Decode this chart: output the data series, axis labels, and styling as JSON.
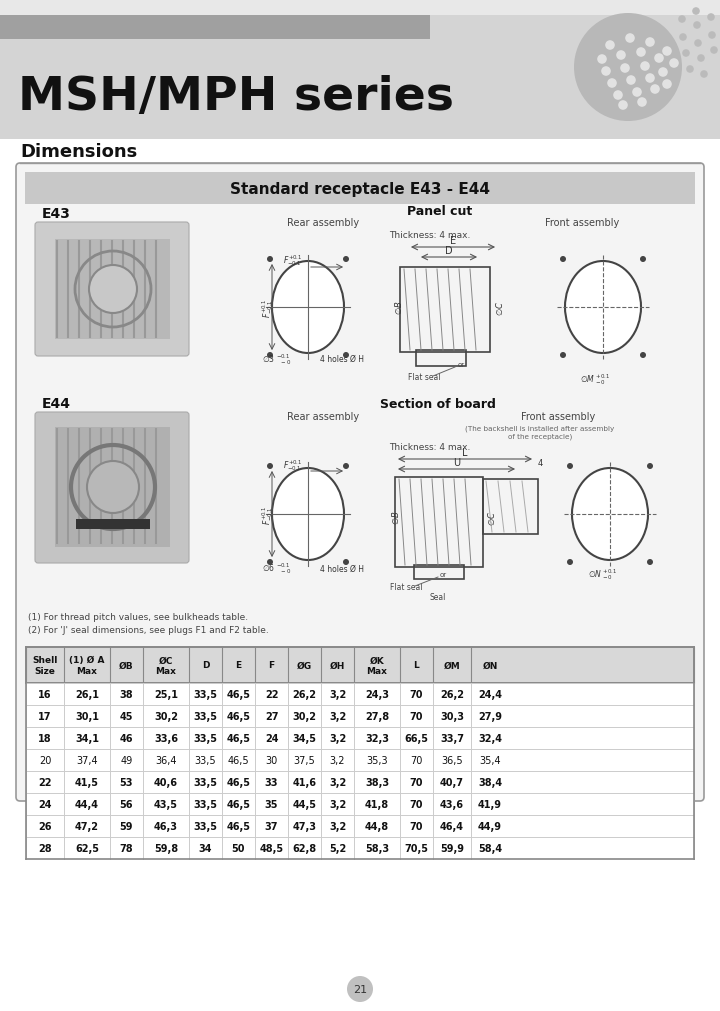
{
  "title": "MSH/MPH series",
  "section_title": "Standard receptacle E43 - E44",
  "dimensions_label": "Dimensions",
  "page_number": "21",
  "table_headers": [
    "Shell\nSize",
    "(1) Ø A\nMax",
    "ØB",
    "ØC\nMax",
    "D",
    "E",
    "F",
    "ØG",
    "ØH",
    "ØK\nMax",
    "L",
    "ØM",
    "ØN"
  ],
  "table_data": [
    [
      "16",
      "26,1",
      "38",
      "25,1",
      "33,5",
      "46,5",
      "22",
      "26,2",
      "3,2",
      "24,3",
      "70",
      "26,2",
      "24,4"
    ],
    [
      "17",
      "30,1",
      "45",
      "30,2",
      "33,5",
      "46,5",
      "27",
      "30,2",
      "3,2",
      "27,8",
      "70",
      "30,3",
      "27,9"
    ],
    [
      "18",
      "34,1",
      "46",
      "33,6",
      "33,5",
      "46,5",
      "24",
      "34,5",
      "3,2",
      "32,3",
      "66,5",
      "33,7",
      "32,4"
    ],
    [
      "20",
      "37,4",
      "49",
      "36,4",
      "33,5",
      "46,5",
      "30",
      "37,5",
      "3,2",
      "35,3",
      "70",
      "36,5",
      "35,4"
    ],
    [
      "22",
      "41,5",
      "53",
      "40,6",
      "33,5",
      "46,5",
      "33",
      "41,6",
      "3,2",
      "38,3",
      "70",
      "40,7",
      "38,4"
    ],
    [
      "24",
      "44,4",
      "56",
      "43,5",
      "33,5",
      "46,5",
      "35",
      "44,5",
      "3,2",
      "41,8",
      "70",
      "43,6",
      "41,9"
    ],
    [
      "26",
      "47,2",
      "59",
      "46,3",
      "33,5",
      "46,5",
      "37",
      "47,3",
      "3,2",
      "44,8",
      "70",
      "46,4",
      "44,9"
    ],
    [
      "28",
      "62,5",
      "78",
      "59,8",
      "34",
      "50",
      "48,5",
      "62,8",
      "5,2",
      "58,3",
      "70,5",
      "59,9",
      "58,4"
    ]
  ],
  "bold_shells": [
    "16",
    "17",
    "18",
    "22",
    "24",
    "26",
    "28"
  ],
  "notes": [
    "(1) For thread pitch values, see bulkheads table.",
    "(2) For 'J' seal dimensions, see plugs F1 and F2 table."
  ]
}
